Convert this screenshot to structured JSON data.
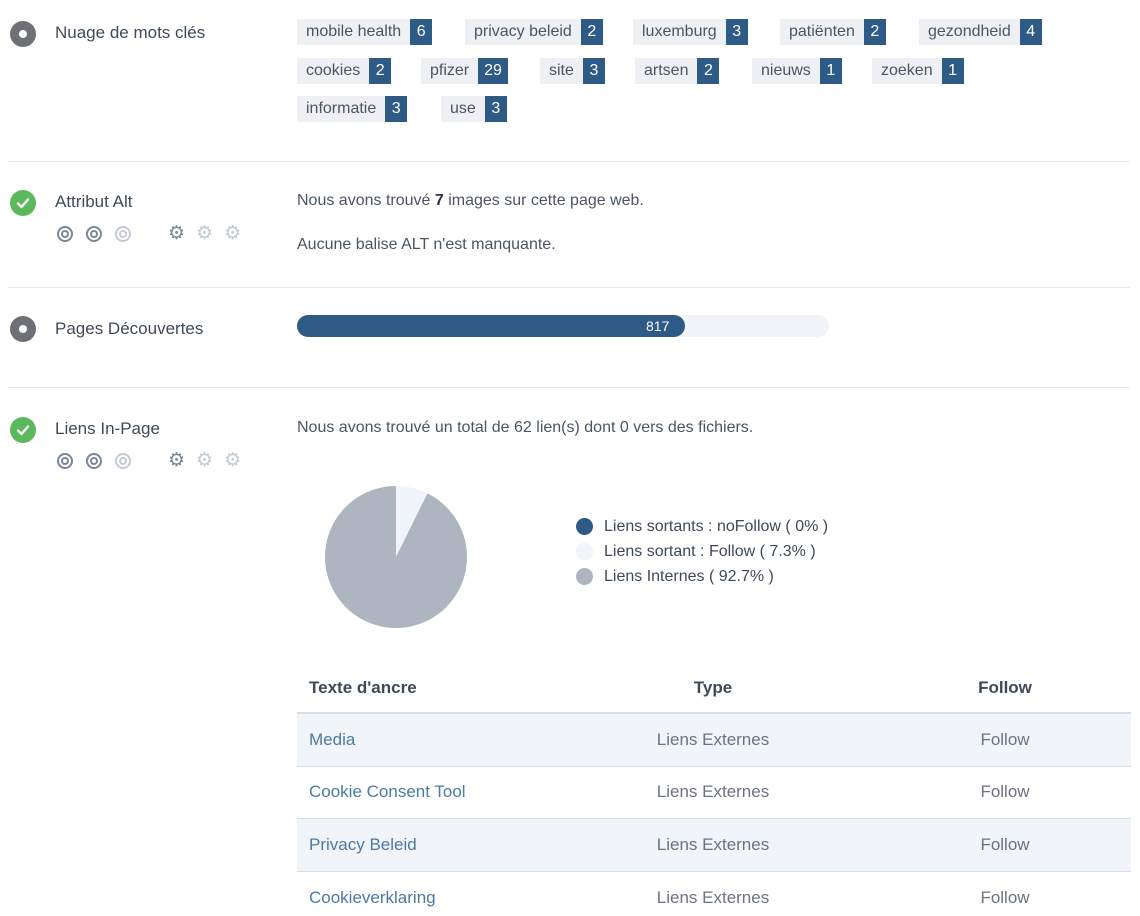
{
  "keyword_cloud": {
    "label": "Nuage de mots clés",
    "tags": [
      {
        "word": "mobile health",
        "count": "6"
      },
      {
        "word": "privacy beleid",
        "count": "2"
      },
      {
        "word": "luxemburg",
        "count": "3"
      },
      {
        "word": "patiënten",
        "count": "2"
      },
      {
        "word": "gezondheid",
        "count": "4"
      },
      {
        "word": "cookies",
        "count": "2"
      },
      {
        "word": "pfizer",
        "count": "29"
      },
      {
        "word": "site",
        "count": "3"
      },
      {
        "word": "artsen",
        "count": "2"
      },
      {
        "word": "nieuws",
        "count": "1"
      },
      {
        "word": "zoeken",
        "count": "1"
      },
      {
        "word": "informatie",
        "count": "3"
      },
      {
        "word": "use",
        "count": "3"
      }
    ]
  },
  "alt_attribute": {
    "label": "Attribut Alt",
    "line1_prefix": "Nous avons trouvé ",
    "line1_count": "7",
    "line1_suffix": " images sur cette page web.",
    "line2": "Aucune balise ALT n'est manquante."
  },
  "pages_discovered": {
    "label": "Pages Découvertes",
    "value": "817",
    "fill_fraction": 0.73
  },
  "in_page_links": {
    "label": "Liens In-Page",
    "summary": "Nous avons trouvé un total de 62 lien(s) dont 0 vers des fichiers.",
    "legend": [
      {
        "label": "Liens sortants : noFollow ( 0% )",
        "color": "#2e5b86",
        "percent": 0
      },
      {
        "label": "Liens sortant : Follow ( 7.3% )",
        "color": "#f1f4f8",
        "percent": 7.3
      },
      {
        "label": "Liens Internes ( 92.7% )",
        "color": "#adb5c0",
        "percent": 92.7
      }
    ],
    "table": {
      "headers": [
        "Texte d'ancre",
        "Type",
        "Follow"
      ],
      "rows": [
        [
          "Media",
          "Liens Externes",
          "Follow"
        ],
        [
          "Cookie Consent Tool",
          "Liens Externes",
          "Follow"
        ],
        [
          "Privacy Beleid",
          "Liens Externes",
          "Follow"
        ],
        [
          "Cookieverklaring",
          "Liens Externes",
          "Follow"
        ]
      ]
    }
  },
  "colors": {
    "primary": "#2e5b86",
    "success": "#5cb85c",
    "neutral_icon": "#6e7075"
  }
}
